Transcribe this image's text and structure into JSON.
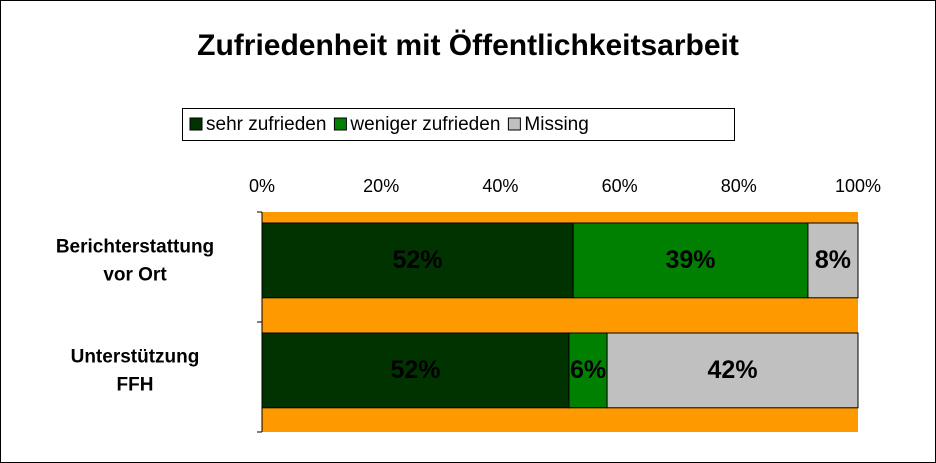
{
  "chart_data": {
    "type": "stacked_bar_horizontal",
    "title": "Zufriedenheit mit Öffentlichkeitsarbeit",
    "categories": [
      "Berichterstattung vor Ort",
      "Unterstützung FFH"
    ],
    "series": [
      {
        "name": "sehr zufrieden",
        "color": "#003300",
        "values": [
          52.2,
          51.5
        ],
        "value_labels": [
          "52%",
          "52%"
        ]
      },
      {
        "name": "weniger zufrieden",
        "color": "#008000",
        "values": [
          39.4,
          6.4
        ],
        "value_labels": [
          "39%",
          "6%"
        ]
      },
      {
        "name": "Missing",
        "color": "#C0C0C0",
        "values": [
          8.4,
          42.1
        ],
        "value_labels": [
          "8%",
          "42%"
        ]
      }
    ],
    "xlim": [
      0,
      100
    ],
    "xticks": [
      {
        "value": 0,
        "label": "0%"
      },
      {
        "value": 20,
        "label": "20%"
      },
      {
        "value": 40,
        "label": "40%"
      },
      {
        "value": 60,
        "label": "60%"
      },
      {
        "value": 80,
        "label": "80%"
      },
      {
        "value": 100,
        "label": "100%"
      }
    ],
    "plot_background": "#FF9900",
    "legend": "top"
  }
}
